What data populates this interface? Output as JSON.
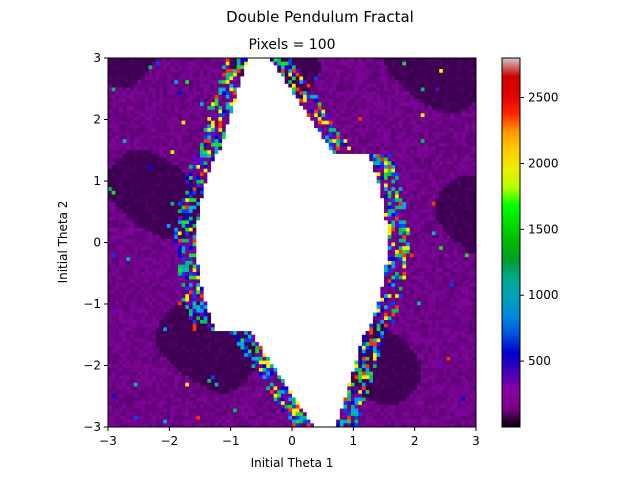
{
  "figure": {
    "suptitle": "Double Pendulum Fractal",
    "title": "Pixels = 100"
  },
  "chart_data": {
    "type": "heatmap",
    "title": "Pixels = 100",
    "suptitle": "Double Pendulum Fractal",
    "xlabel": "Initial Theta 1",
    "ylabel": "Initial Theta 2",
    "xlim": [
      -3,
      3
    ],
    "ylim": [
      -3,
      3
    ],
    "xticks": [
      "−3",
      "−2",
      "−1",
      "0",
      "1",
      "2",
      "3"
    ],
    "yticks": [
      "−3",
      "−2",
      "−1",
      "0",
      "1",
      "2",
      "3"
    ],
    "grid_size": 100,
    "colormap": "nipy_spectral",
    "colorbar": {
      "range": [
        0,
        2800
      ],
      "ticks": [
        "500",
        "1000",
        "1500",
        "2000",
        "2500"
      ],
      "tick_values": [
        500,
        1000,
        1500,
        2000,
        2500
      ]
    },
    "white_region": "central diamond-shaped region, no value (blank)",
    "background_level_estimate": 150,
    "colors": {
      "dark_purple": "#2a0030",
      "purple": "#7a0f8a",
      "white": "#ffffff"
    }
  }
}
